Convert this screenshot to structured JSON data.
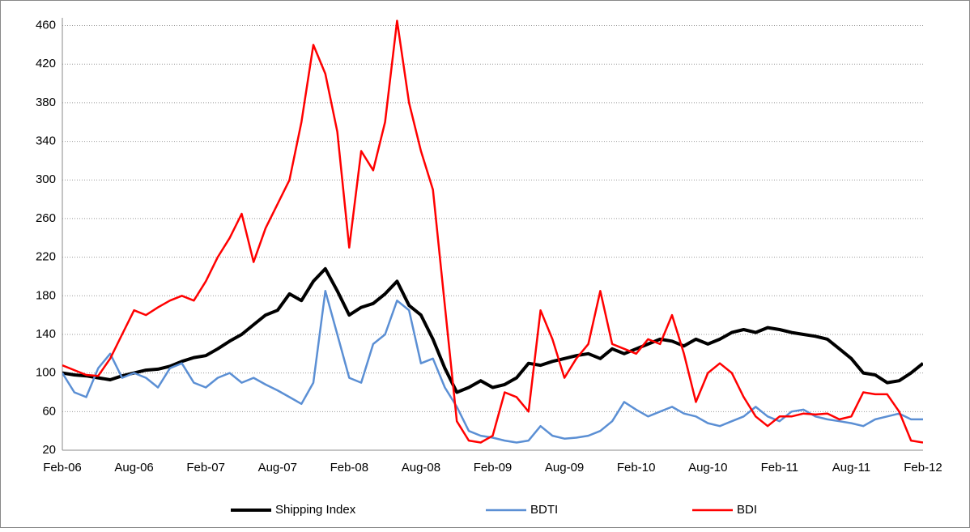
{
  "chart_data": {
    "type": "line",
    "categories": [
      "Feb-06",
      null,
      null,
      null,
      null,
      null,
      "Aug-06",
      null,
      null,
      null,
      null,
      null,
      "Feb-07",
      null,
      null,
      null,
      null,
      null,
      "Aug-07",
      null,
      null,
      null,
      null,
      null,
      "Feb-08",
      null,
      null,
      null,
      null,
      null,
      "Aug-08",
      null,
      null,
      null,
      null,
      null,
      "Feb-09",
      null,
      null,
      null,
      null,
      null,
      "Aug-09",
      null,
      null,
      null,
      null,
      null,
      "Feb-10",
      null,
      null,
      null,
      null,
      null,
      "Aug-10",
      null,
      null,
      null,
      null,
      null,
      "Feb-11",
      null,
      null,
      null,
      null,
      null,
      "Aug-11",
      null,
      null,
      null,
      null,
      null,
      "Feb-12"
    ],
    "series": [
      {
        "name": "Shipping Index",
        "color": "#000000",
        "width": 4,
        "values": [
          100,
          98,
          97,
          95,
          93,
          97,
          100,
          103,
          104,
          107,
          112,
          116,
          118,
          125,
          133,
          140,
          150,
          160,
          165,
          182,
          175,
          195,
          208,
          185,
          160,
          168,
          172,
          182,
          195,
          170,
          160,
          135,
          105,
          80,
          85,
          92,
          85,
          88,
          95,
          110,
          108,
          112,
          115,
          118,
          120,
          115,
          125,
          120,
          125,
          130,
          135,
          133,
          128,
          135,
          130,
          135,
          142,
          145,
          142,
          147,
          145,
          142,
          140,
          138,
          135,
          125,
          115,
          100,
          98,
          90,
          92,
          100,
          110
        ]
      },
      {
        "name": "BDTI",
        "color": "#5b8fd4",
        "width": 2.5,
        "values": [
          100,
          80,
          75,
          105,
          120,
          95,
          100,
          95,
          85,
          105,
          110,
          90,
          85,
          95,
          100,
          90,
          95,
          88,
          82,
          75,
          68,
          90,
          185,
          140,
          95,
          90,
          130,
          140,
          175,
          165,
          110,
          115,
          85,
          65,
          40,
          35,
          33,
          30,
          28,
          30,
          45,
          35,
          32,
          33,
          35,
          40,
          50,
          70,
          62,
          55,
          60,
          65,
          58,
          55,
          48,
          45,
          50,
          55,
          65,
          55,
          50,
          60,
          62,
          55,
          52,
          50,
          48,
          45,
          52,
          55,
          58,
          52,
          52
        ]
      },
      {
        "name": "BDI",
        "color": "#ff0000",
        "width": 2.5,
        "values": [
          108,
          103,
          98,
          97,
          115,
          140,
          165,
          160,
          168,
          175,
          180,
          175,
          195,
          220,
          240,
          265,
          215,
          250,
          275,
          300,
          360,
          440,
          410,
          350,
          230,
          330,
          310,
          360,
          465,
          380,
          330,
          290,
          170,
          50,
          30,
          28,
          35,
          80,
          75,
          60,
          165,
          135,
          95,
          115,
          130,
          185,
          130,
          125,
          120,
          135,
          130,
          160,
          120,
          70,
          100,
          110,
          100,
          75,
          55,
          45,
          55,
          55,
          58,
          57,
          58,
          52,
          55,
          80,
          78,
          78,
          60,
          30,
          28
        ]
      }
    ],
    "ylim": [
      20,
      468
    ],
    "yticks": [
      20,
      60,
      100,
      140,
      180,
      220,
      260,
      300,
      340,
      380,
      420,
      460
    ],
    "grid": true,
    "legend": "bottom"
  }
}
